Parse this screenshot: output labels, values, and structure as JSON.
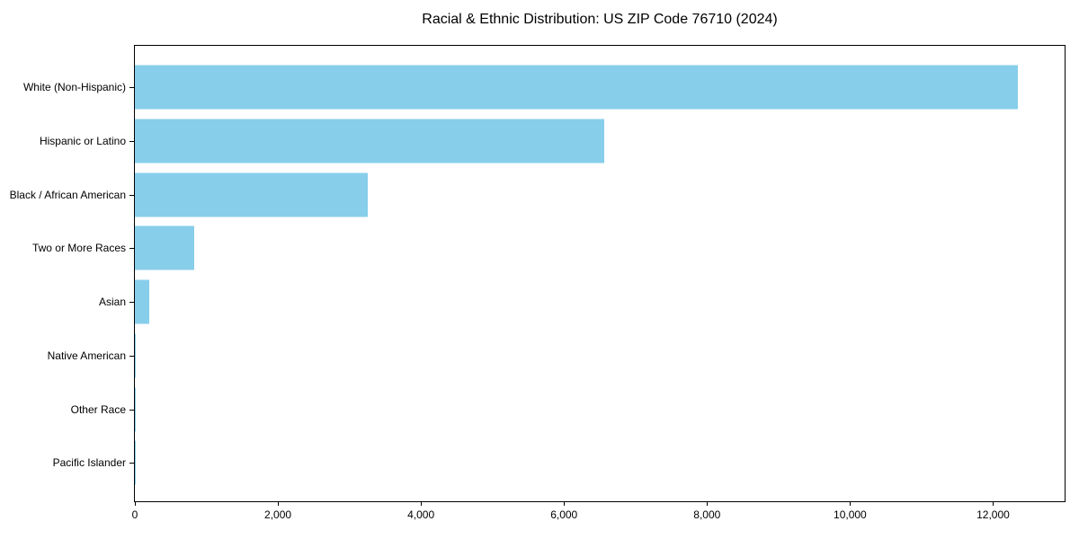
{
  "title": "Racial & Ethnic Distribution: US ZIP Code 76710 (2024)",
  "colors": {
    "bar": "#87CEEB",
    "axis": "#000000",
    "text": "#000000",
    "background": "#ffffff"
  },
  "chart_data": {
    "type": "bar",
    "orientation": "horizontal",
    "title": "Racial & Ethnic Distribution: US ZIP Code 76710 (2024)",
    "categories": [
      "White (Non-Hispanic)",
      "Hispanic or Latino",
      "Black / African American",
      "Two or More Races",
      "Asian",
      "Native American",
      "Other Race",
      "Pacific Islander"
    ],
    "values": [
      12350,
      6560,
      3260,
      830,
      200,
      15,
      10,
      5
    ],
    "xlabel": "",
    "ylabel": "",
    "xlim": [
      0,
      13000
    ],
    "x_ticks": [
      0,
      2000,
      4000,
      6000,
      8000,
      10000,
      12000
    ],
    "x_tick_labels": [
      "0",
      "2,000",
      "4,000",
      "6,000",
      "8,000",
      "10,000",
      "12,000"
    ],
    "grid": false,
    "legend": "none",
    "bar_color": "#87CEEB"
  }
}
